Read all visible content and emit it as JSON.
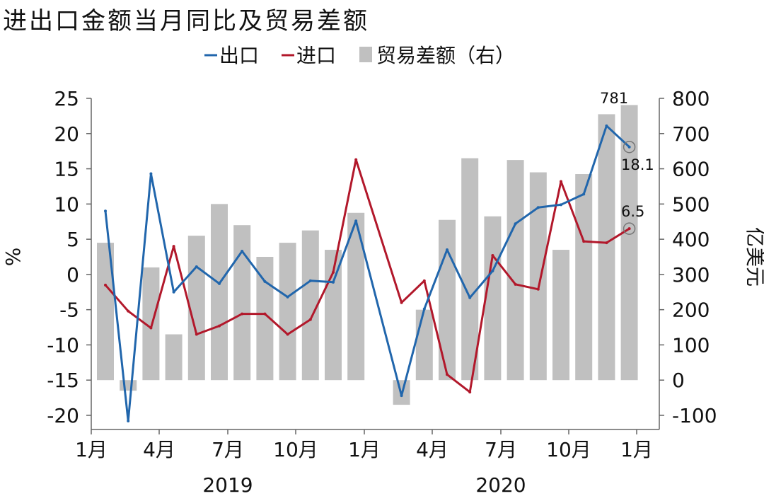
{
  "title": "进出口金额当月同比及贸易差额",
  "colors": {
    "export": "#2166ac",
    "import": "#b2182b",
    "balance": "#c0c0c0"
  },
  "chart_data": {
    "type": "bar+line",
    "x": [
      "2019-01",
      "2019-02",
      "2019-03",
      "2019-04",
      "2019-05",
      "2019-06",
      "2019-07",
      "2019-08",
      "2019-09",
      "2019-10",
      "2019-11",
      "2019-12",
      "2020-01",
      "2020-02",
      "2020-03",
      "2020-04",
      "2020-05",
      "2020-06",
      "2020-07",
      "2020-08",
      "2020-09",
      "2020-10",
      "2020-11",
      "2020-12"
    ],
    "x_tick_labels": [
      "1月",
      "4月",
      "7月",
      "10月",
      "1月",
      "4月",
      "7月",
      "10月",
      "1月"
    ],
    "year_labels": [
      "2019",
      "2020"
    ],
    "legend": [
      "出口",
      "进口",
      "贸易差额（右）"
    ],
    "y_left": {
      "label": "%",
      "lim": [
        -20,
        25
      ],
      "ticks": [
        "-20",
        "-15",
        "-10",
        "-5",
        "0",
        "5",
        "10",
        "15",
        "20",
        "25"
      ]
    },
    "y_right": {
      "label": "亿美元",
      "lim": [
        -100,
        800
      ],
      "ticks": [
        "-100",
        "0",
        "100",
        "200",
        "300",
        "400",
        "500",
        "600",
        "700",
        "800"
      ]
    },
    "series": [
      {
        "name": "出口",
        "axis": "left",
        "values": [
          9.0,
          -20.8,
          14.3,
          -2.5,
          1.1,
          -1.3,
          3.3,
          -1.0,
          -3.2,
          -0.9,
          -1.1,
          7.6,
          null,
          -17.2,
          -4.9,
          3.5,
          -3.3,
          0.5,
          7.2,
          9.5,
          9.9,
          11.4,
          21.1,
          18.1
        ]
      },
      {
        "name": "进口",
        "axis": "left",
        "values": [
          -1.5,
          -5.2,
          -7.6,
          4.0,
          -8.5,
          -7.3,
          -5.6,
          -5.6,
          -8.5,
          -6.4,
          0.3,
          16.3,
          null,
          -4.0,
          -0.9,
          -14.2,
          -16.7,
          2.7,
          -1.4,
          -2.1,
          13.2,
          4.7,
          4.5,
          6.5
        ]
      },
      {
        "name": "贸易差额（右）",
        "axis": "right",
        "type": "bar",
        "values": [
          390,
          -30,
          320,
          130,
          410,
          500,
          440,
          350,
          390,
          425,
          370,
          475,
          null,
          -70,
          200,
          455,
          630,
          465,
          625,
          590,
          370,
          585,
          755,
          781
        ]
      }
    ],
    "annotations": [
      "781",
      "18.1",
      "6.5"
    ]
  }
}
